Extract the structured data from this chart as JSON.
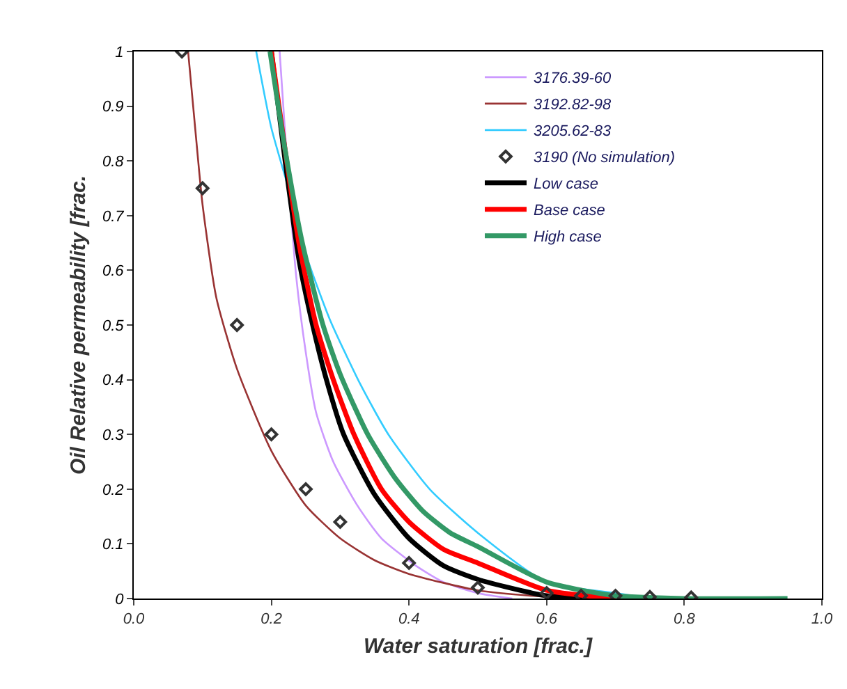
{
  "chart_data": {
    "type": "line",
    "xlabel": "Water saturation [frac.]",
    "ylabel": "Oil Relative permeability [frac.",
    "xlim": [
      0,
      1
    ],
    "ylim": [
      0,
      1
    ],
    "xticks": [
      {
        "value": 0,
        "label": "0.0"
      },
      0.2,
      0.4,
      0.6,
      0.8,
      {
        "value": 1,
        "label": "1.0"
      }
    ],
    "yticks": [
      0,
      0.1,
      0.2,
      0.3,
      0.4,
      0.5,
      0.6,
      0.7,
      0.8,
      0.9,
      1
    ],
    "grid": false,
    "legend": "top right",
    "line_style": "solid",
    "series": [
      {
        "name": "3176.39-60",
        "color": "#cc99ff",
        "x": [
          0.212,
          0.22,
          0.236,
          0.25,
          0.265,
          0.29,
          0.325,
          0.36,
          0.41,
          0.45,
          0.5,
          0.55
        ],
        "values": [
          1,
          0.85,
          0.59,
          0.45,
          0.34,
          0.25,
          0.17,
          0.11,
          0.06,
          0.03,
          0.01,
          0
        ]
      },
      {
        "name": "3192.82-98",
        "color": "#993333",
        "x": [
          0.079,
          0.09,
          0.1,
          0.12,
          0.15,
          0.2,
          0.25,
          0.3,
          0.35,
          0.4,
          0.5,
          0.6,
          0.65
        ],
        "values": [
          1,
          0.85,
          0.72,
          0.55,
          0.42,
          0.27,
          0.17,
          0.11,
          0.07,
          0.045,
          0.015,
          0.003,
          0
        ]
      },
      {
        "name": "3205.62-83",
        "color": "#33ccff",
        "x": [
          0.178,
          0.2,
          0.226,
          0.25,
          0.285,
          0.33,
          0.37,
          0.43,
          0.5,
          0.6,
          0.7,
          0.75
        ],
        "values": [
          1,
          0.86,
          0.745,
          0.63,
          0.51,
          0.39,
          0.3,
          0.2,
          0.12,
          0.03,
          0.01,
          0
        ]
      },
      {
        "name": "3190 (No simulation)",
        "type": "scatter",
        "marker": "diamond",
        "color": "#333333",
        "x": [
          0.07,
          0.1,
          0.15,
          0.2,
          0.25,
          0.3,
          0.4,
          0.5,
          0.6,
          0.65,
          0.7,
          0.75,
          0.81
        ],
        "values": [
          1,
          0.75,
          0.5,
          0.3,
          0.2,
          0.14,
          0.065,
          0.02,
          0.01,
          0.005,
          0.005,
          0.003,
          0.002
        ]
      },
      {
        "name": "Low case",
        "color": "#000000",
        "x": [
          0.2,
          0.22,
          0.24,
          0.26,
          0.28,
          0.305,
          0.35,
          0.4,
          0.45,
          0.5,
          0.6,
          0.7
        ],
        "values": [
          1,
          0.8,
          0.62,
          0.5,
          0.4,
          0.3,
          0.19,
          0.11,
          0.06,
          0.035,
          0.005,
          0
        ]
      },
      {
        "name": "Base case",
        "color": "#ff0000",
        "x": [
          0.2,
          0.22,
          0.24,
          0.265,
          0.29,
          0.32,
          0.36,
          0.4,
          0.45,
          0.5,
          0.6,
          0.7
        ],
        "values": [
          1,
          0.82,
          0.65,
          0.5,
          0.4,
          0.3,
          0.2,
          0.14,
          0.09,
          0.065,
          0.015,
          0
        ]
      },
      {
        "name": "High case",
        "color": "#339966",
        "x": [
          0.198,
          0.22,
          0.245,
          0.275,
          0.3,
          0.34,
          0.38,
          0.42,
          0.46,
          0.5,
          0.6,
          0.7,
          0.8,
          0.95
        ],
        "values": [
          1,
          0.82,
          0.65,
          0.5,
          0.41,
          0.3,
          0.22,
          0.16,
          0.12,
          0.095,
          0.03,
          0.005,
          0,
          0
        ]
      }
    ]
  }
}
